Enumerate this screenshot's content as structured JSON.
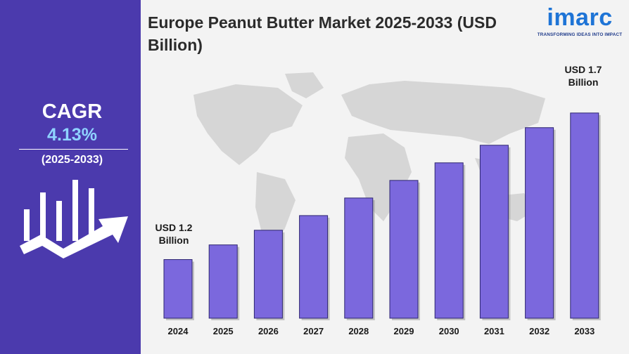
{
  "title": "Europe Peanut Butter Market 2025-2033 (USD Billion)",
  "cagr": {
    "label": "CAGR",
    "value": "4.13%",
    "period": "(2025-2033)"
  },
  "logo": {
    "brand": "imarc",
    "tagline": "TRANSFORMING IDEAS INTO IMPACT"
  },
  "annotations": {
    "first": "USD 1.2 Billion",
    "last": "USD 1.7 Billion"
  },
  "colors": {
    "panel": "#4b3aad",
    "bar": "#7b68dd",
    "cagr_value": "#8fd3ff",
    "logo": "#1e74d6"
  },
  "chart_data": {
    "type": "bar",
    "title": "Europe Peanut Butter Market 2025-2033 (USD Billion)",
    "categories": [
      "2024",
      "2025",
      "2026",
      "2027",
      "2028",
      "2029",
      "2030",
      "2031",
      "2032",
      "2033"
    ],
    "values": [
      1.2,
      1.25,
      1.3,
      1.35,
      1.41,
      1.47,
      1.53,
      1.59,
      1.65,
      1.7
    ],
    "ylim": [
      1.0,
      1.75
    ],
    "xlabel": "",
    "ylabel": "",
    "grid": false,
    "legend": "none"
  }
}
